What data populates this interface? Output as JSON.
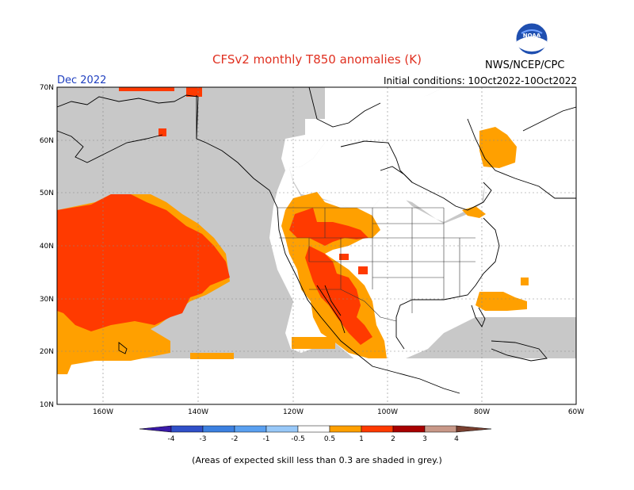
{
  "header": {
    "title": "CFSv2 monthly T850 anomalies (K)",
    "month": "Dec 2022",
    "init": "Initial conditions: 10Oct2022-10Oct2022",
    "agency": "NWS/NCEP/CPC",
    "logo_text": "NOAA"
  },
  "map": {
    "lon_labels": [
      "160W",
      "140W",
      "120W",
      "100W",
      "80W",
      "60W"
    ],
    "lat_labels": [
      "70N",
      "60N",
      "50N",
      "40N",
      "30N",
      "20N",
      "10N"
    ]
  },
  "legend": {
    "labels": [
      "-4",
      "-3",
      "-2",
      "-1",
      "-0.5",
      "0.5",
      "1",
      "2",
      "3",
      "4"
    ],
    "colors": [
      "#3a1aa8",
      "#3050c8",
      "#3c80e0",
      "#5aa0f0",
      "#98c8f8",
      "#ffffff",
      "#ffa000",
      "#ff3a00",
      "#a80000",
      "#c89888",
      "#7a4030"
    ]
  },
  "colors": {
    "grey": "#c8c8c8",
    "orange": "#ffa000",
    "red": "#ff3a00"
  },
  "footnote": "(Areas of expected skill less than 0.3 are shaded in grey.)"
}
